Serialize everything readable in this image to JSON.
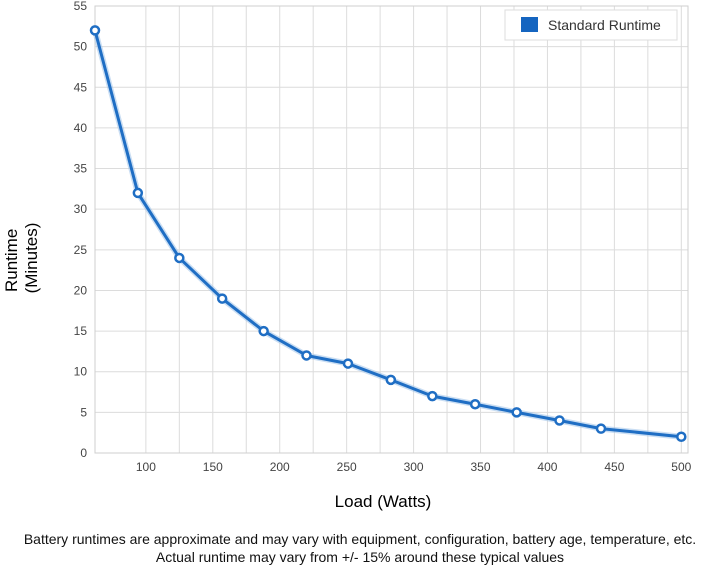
{
  "chart_data": {
    "type": "line",
    "xlabel": "Load (Watts)",
    "ylabel_lines": [
      "Runtime",
      "(Minutes)"
    ],
    "xlim": [
      62,
      505
    ],
    "ylim": [
      0,
      55
    ],
    "x_ticks": [
      100,
      150,
      200,
      250,
      300,
      350,
      400,
      450,
      500
    ],
    "y_ticks": [
      0,
      5,
      10,
      15,
      20,
      25,
      30,
      35,
      40,
      45,
      50,
      55
    ],
    "x_grid": [
      62,
      100,
      125,
      150,
      175,
      200,
      225,
      250,
      275,
      300,
      325,
      350,
      375,
      400,
      425,
      450,
      475,
      500
    ],
    "grid": true,
    "legend_position": "top-right",
    "series": [
      {
        "name": "Standard Runtime",
        "color": "#1f6ec4",
        "points": [
          [
            62,
            52
          ],
          [
            94,
            32
          ],
          [
            125,
            24
          ],
          [
            157,
            19
          ],
          [
            188,
            15
          ],
          [
            220,
            12
          ],
          [
            251,
            11
          ],
          [
            283,
            9
          ],
          [
            314,
            7
          ],
          [
            346,
            6
          ],
          [
            377,
            5
          ],
          [
            409,
            4
          ],
          [
            440,
            3
          ],
          [
            500,
            2
          ]
        ]
      }
    ]
  },
  "footer": {
    "line1": "Battery runtimes are approximate and may vary with equipment, configuration, battery age, temperature, etc.",
    "line2": "Actual runtime may vary from +/- 15% around these typical values"
  }
}
